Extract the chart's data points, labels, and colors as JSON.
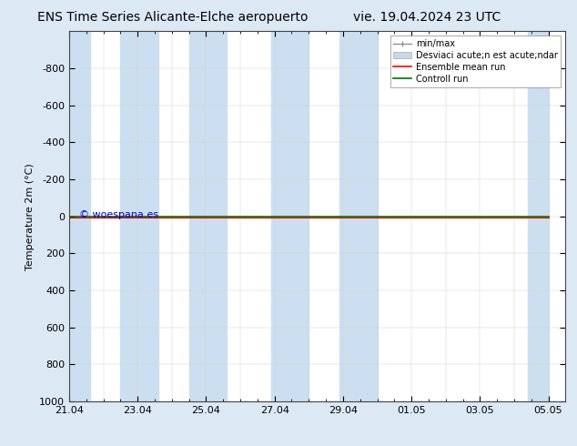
{
  "title_left": "ENS Time Series Alicante-Elche aeropuerto",
  "title_right": "vie. 19.04.2024 23 UTC",
  "ylabel": "Temperature 2m (°C)",
  "ylim_min": -1000,
  "ylim_max": 1000,
  "yticks": [
    -800,
    -600,
    -400,
    -200,
    0,
    200,
    400,
    600,
    800,
    1000
  ],
  "x_labels": [
    "21.04",
    "23.04",
    "25.04",
    "27.04",
    "29.04",
    "01.05",
    "03.05",
    "05.05"
  ],
  "x_positions": [
    0,
    2,
    4,
    6,
    8,
    10,
    12,
    14
  ],
  "shaded_ranges": [
    [
      0,
      0.5
    ],
    [
      1.5,
      2.5
    ],
    [
      3.5,
      4.5
    ],
    [
      6,
      7
    ],
    [
      8,
      9
    ],
    [
      13.5,
      14
    ]
  ],
  "shaded_color": "#ccdff0",
  "plot_bg_color": "#ffffff",
  "fig_bg_color": "#dce9f5",
  "control_run_color": "#007000",
  "ensemble_mean_color": "#ff0000",
  "minmax_color": "#909090",
  "std_color": "#c8d8ea",
  "watermark": "© woespana.es",
  "watermark_color": "#0000cc",
  "legend_labels": [
    "min/max",
    "Desviaci acute;n est acute;ndar",
    "Ensemble mean run",
    "Controll run"
  ],
  "title_fontsize": 10,
  "ylabel_fontsize": 8,
  "tick_fontsize": 8,
  "legend_fontsize": 7
}
